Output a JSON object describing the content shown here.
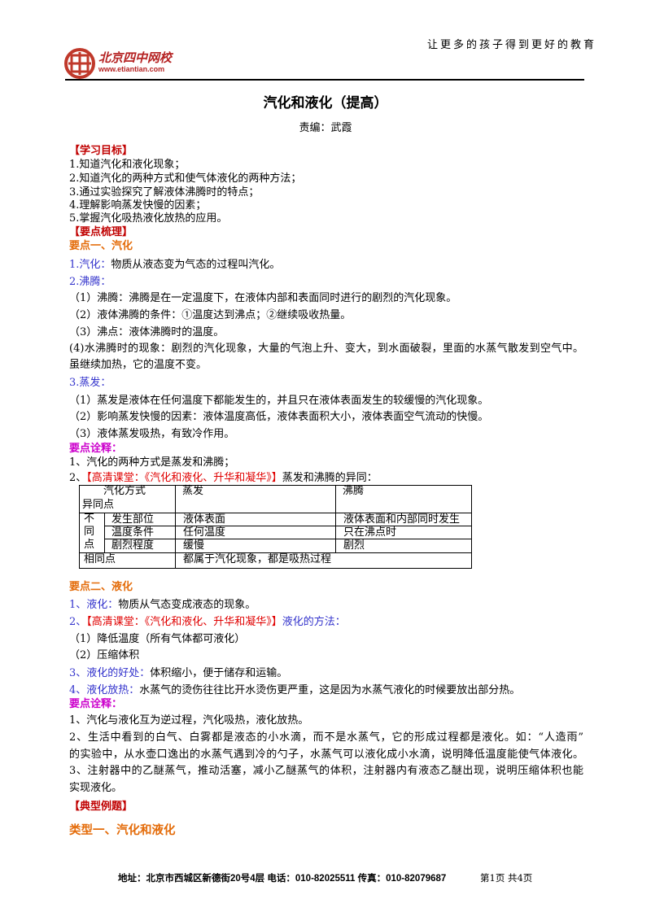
{
  "header": {
    "slogan": "让更多的孩子得到更好的教育",
    "logo_text": "北京四中网校",
    "logo_url": "www.etiantian.com"
  },
  "title": "汽化和液化（提高）",
  "editor": "责编：武霞",
  "body": {
    "section1": [
      [
        {
          "text": "【学习目标】",
          "color": "#c00000",
          "bold": true
        }
      ],
      [
        {
          "text": "1.知道汽化和液化现象；"
        }
      ],
      [
        {
          "text": "2.知道汽化的两种方式和使气体液化的两种方法；"
        }
      ],
      [
        {
          "text": "3.通过实验探究了解液体沸腾时的特点；"
        }
      ],
      [
        {
          "text": "4.理解影响蒸发快慢的因素；"
        }
      ],
      [
        {
          "text": "5.掌握汽化吸热液化放热的应用。"
        }
      ],
      [
        {
          "text": "【要点梳理】",
          "color": "#c00000",
          "bold": true
        }
      ],
      [
        {
          "text": "要点一、汽化",
          "color": "#e46c0a",
          "bold": true
        }
      ],
      [
        {
          "text": "1.汽化：",
          "color": "#3333cc"
        },
        {
          "text": "物质从液态变为气态的过程叫汽化。"
        }
      ],
      [
        {
          "text": "2.沸腾：",
          "color": "#3333cc"
        }
      ],
      [
        {
          "text": "（1）沸腾：沸腾是在一定温度下，在液体内部和表面同时进行的剧烈的汽化现象。"
        }
      ],
      [
        {
          "text": "（2）液体沸腾的条件：①温度达到沸点；②继续吸收热量。"
        }
      ],
      [
        {
          "text": "（3）沸点：液体沸腾时的温度。"
        }
      ],
      [
        {
          "text": "(4)水沸腾时的现象：剧烈的汽化现象，大量的气泡上升、变大，到水面破裂，里面的水蒸气散发到空气中。"
        }
      ],
      [
        {
          "text": "虽继续加热，它的温度不变。"
        }
      ],
      [
        {
          "text": "3.蒸发：",
          "color": "#3333cc"
        }
      ],
      [
        {
          "text": "（1）蒸发是液体在任何温度下都能发生的，并且只在液体表面发生的较缓慢的汽化现象。"
        }
      ],
      [
        {
          "text": "（2）影响蒸发快慢的因素：液体温度高低，液体表面积大小，液体表面空气流动的快慢。"
        }
      ],
      [
        {
          "text": "（3）液体蒸发吸热，有致冷作用。"
        }
      ],
      [
        {
          "text": "要点诠释：",
          "color": "#cc00cc",
          "bold": true
        }
      ],
      [
        {
          "text": "1、汽化的两种方式是蒸发和沸腾；"
        }
      ],
      [
        {
          "text": "2、"
        },
        {
          "text": "【高清课堂：《汽化和液化、升华和凝华》】",
          "color": "#e00000"
        },
        {
          "text": "蒸发和沸腾的异同："
        }
      ]
    ],
    "section2": [
      [
        {
          "text": "要点二、液化",
          "color": "#e46c0a",
          "bold": true
        }
      ],
      [
        {
          "text": "1、液化：",
          "color": "#3333cc"
        },
        {
          "text": "物质从气态变成液态的现象。"
        }
      ],
      [
        {
          "text": "2、",
          "color": "#3333cc"
        },
        {
          "text": "【高清课堂：《汽化和液化、升华和凝华》】",
          "color": "#e00000"
        },
        {
          "text": "液化的方法：",
          "color": "#3333cc"
        }
      ],
      [
        {
          "text": "（1）降低温度（所有气体都可液化）"
        }
      ],
      [
        {
          "text": "（2）压缩体积"
        }
      ],
      [
        {
          "text": "3、液化的好处：",
          "color": "#3333cc"
        },
        {
          "text": "体积缩小，便于储存和运输。"
        }
      ],
      [
        {
          "text": "4、液化放热：",
          "color": "#3333cc"
        },
        {
          "text": "水蒸气的烫伤往往比开水烫伤更严重，这是因为水蒸气液化的时候要放出部分热。"
        }
      ],
      [
        {
          "text": "要点诠释：",
          "color": "#cc00cc",
          "bold": true
        }
      ],
      [
        {
          "text": "1、汽化与液化互为逆过程，汽化吸热，液化放热。"
        }
      ],
      [
        {
          "text": "2、生活中看到的白气、白雾都是液态的小水滴，而不是水蒸气，它的形成过程都是液化。如：“人造雨”"
        }
      ],
      [
        {
          "text": "的实验中，从水壶口逸出的水蒸气遇到冷的勺子，水蒸气可以液化成小水滴，说明降低温度能使气体液化。"
        }
      ],
      [
        {
          "text": "3、注射器中的乙醚蒸气，推动活塞，减小乙醚蒸气的体积，注射器内有液态乙醚出现，说明压缩体积也能"
        }
      ],
      [
        {
          "text": "实现液化。"
        }
      ],
      [
        {
          "text": "【典型例题】",
          "color": "#c00000",
          "bold": true
        }
      ],
      [
        {
          "text": "类型一、汽化和液化",
          "color": "#e46c0a",
          "bold": true
        }
      ]
    ]
  },
  "table": {
    "header": {
      "corner_top": "汽化方式",
      "corner_bottom": "异同点",
      "columns": [
        "蒸发",
        "沸腾"
      ]
    },
    "differences": {
      "label": "不同点",
      "rows": [
        [
          "发生部位",
          "液体表面",
          "液体表面和内部同时发生"
        ],
        [
          "温度条件",
          "任何温度",
          "只在沸点时"
        ],
        [
          "剧烈程度",
          "缓慢",
          "剧烈"
        ]
      ]
    },
    "same": {
      "label": "相同点",
      "text": "都属于汽化现象，都是吸热过程"
    }
  },
  "footer": {
    "contact": "地址：北京市西城区新德街20号4层 电话：010-82025511 传真：010-82079687",
    "page": "第1页 共4页"
  }
}
